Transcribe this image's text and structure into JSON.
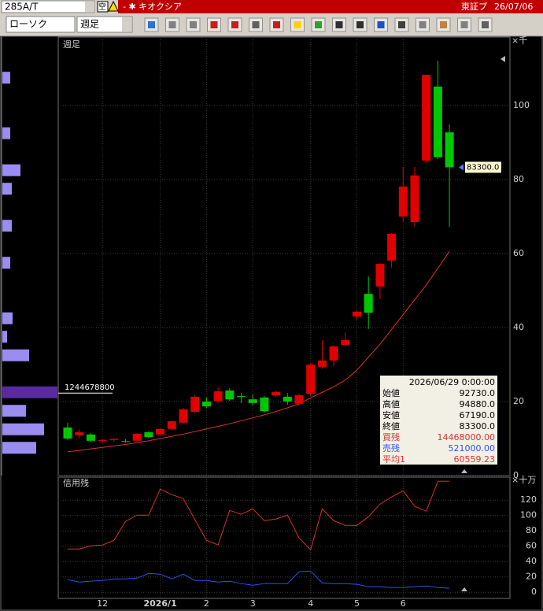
{
  "toolbar": {
    "symbol": "285A/T",
    "flag": "空",
    "name": "- ✱ キオクシア",
    "market": "東証プ",
    "date": "26/07/06",
    "chart_style": "ローソク",
    "period": "週足"
  },
  "chart_data": [
    {
      "type": "candlestick",
      "title": "週足",
      "unit": "×千",
      "categories": [
        null,
        null,
        null,
        "12",
        null,
        null,
        null,
        null,
        "2026/1",
        null,
        null,
        null,
        "2",
        null,
        null,
        null,
        "3",
        null,
        null,
        null,
        null,
        "4",
        null,
        null,
        null,
        "5",
        null,
        null,
        null,
        "6",
        null,
        null,
        null,
        null
      ],
      "open": [
        13.0,
        10.9,
        11.1,
        9.4,
        9.6,
        9.3,
        9.4,
        11.7,
        11.1,
        12.6,
        14.3,
        17.2,
        20.0,
        20.2,
        23.0,
        21.5,
        20.6,
        21.1,
        21.7,
        21.3,
        19.4,
        22.1,
        29.4,
        31.1,
        35.3,
        43.0,
        49.1,
        51.1,
        58.1,
        70.0,
        68.5,
        85.1,
        105.1,
        92.73
      ],
      "high": [
        14.3,
        12.5,
        11.5,
        10.0,
        10.2,
        9.8,
        11.5,
        12.0,
        12.8,
        14.9,
        18.3,
        21.7,
        21.1,
        23.8,
        23.6,
        22.3,
        21.9,
        21.5,
        23.0,
        22.3,
        22.1,
        30.4,
        36.6,
        35.3,
        38.7,
        44.7,
        53.8,
        57.4,
        65.5,
        83.4,
        83.4,
        108.3,
        112.1,
        94.88
      ],
      "low": [
        9.6,
        10.0,
        9.1,
        8.9,
        9.2,
        8.9,
        9.2,
        10.2,
        10.9,
        12.3,
        14.0,
        16.8,
        18.3,
        19.6,
        20.2,
        19.6,
        18.9,
        17.0,
        21.1,
        19.1,
        18.9,
        21.5,
        28.9,
        29.6,
        34.9,
        42.1,
        39.6,
        47.7,
        56.2,
        68.5,
        67.2,
        84.5,
        85.5,
        67.19
      ],
      "close": [
        10.0,
        11.7,
        9.4,
        9.6,
        9.9,
        9.1,
        11.3,
        10.4,
        12.6,
        14.7,
        17.9,
        21.3,
        18.7,
        22.8,
        20.6,
        21.3,
        19.6,
        17.4,
        22.6,
        20.0,
        21.7,
        30.0,
        31.1,
        34.9,
        36.6,
        44.3,
        44.0,
        57.2,
        65.3,
        78.1,
        81.1,
        108.3,
        86.0,
        83.3
      ],
      "up_color": "#e00000",
      "down_color": "#00c800",
      "overlay": {
        "name": "平均1",
        "color": "#e03030",
        "values": [
          6.4,
          6.8,
          7.2,
          7.6,
          8.0,
          8.4,
          8.9,
          9.4,
          10.0,
          10.6,
          11.2,
          11.9,
          12.6,
          13.3,
          14.0,
          14.8,
          15.6,
          16.4,
          17.3,
          18.3,
          19.4,
          21.0,
          22.5,
          24.0,
          25.8,
          28.5,
          32.0,
          35.5,
          39.5,
          43.5,
          47.5,
          51.5,
          56.0,
          60.56
        ],
        "last_label": "60559.23"
      },
      "ylim": [
        0,
        118.5
      ],
      "yticks": [
        0,
        20,
        40,
        60,
        80,
        100
      ],
      "grid": true,
      "volume_profile": {
        "prices": [
          107.5,
          92.5,
          82.5,
          77.5,
          67.5,
          57.5,
          42.5,
          37.5,
          32.5,
          22.5,
          17.5,
          12.5,
          7.5
        ],
        "volumes": [
          178000000,
          178000000,
          409000000,
          213000000,
          213000000,
          178000000,
          231000000,
          107000000,
          605000000,
          1244678800,
          533000000,
          942000000,
          764000000
        ],
        "color": "#9a8cf0",
        "max_color": "#5a2aa0"
      },
      "last_price_label": "83300.0",
      "info": {
        "date": "2026/06/29 0:00:00",
        "ohlc_labels": [
          "始値",
          "高値",
          "安値",
          "終値"
        ],
        "ohlc_values": [
          "92730.0",
          "94880.0",
          "67190.0",
          "83300.0"
        ]
      }
    },
    {
      "type": "line",
      "title": "信用残",
      "unit": "×十万",
      "ylim": [
        -8,
        150
      ],
      "yticks": [
        0,
        20,
        40,
        60,
        80,
        100,
        120
      ],
      "grid": true,
      "series": [
        {
          "name": "買残",
          "color": "#d83030",
          "values": [
            56.4,
            56.4,
            60.5,
            61.5,
            67.7,
            92.3,
            100.5,
            100.5,
            134.4,
            127.2,
            122,
            94.4,
            67.7,
            61.5,
            106.7,
            101.5,
            108.7,
            93.3,
            95.4,
            100.5,
            70.8,
            55.4,
            108.7,
            93.3,
            87.2,
            87.2,
            98.5,
            114.9,
            124.1,
            132.3,
            111.8,
            105.6,
            144.6,
            144.68
          ],
          "last_label": "14468000.00"
        },
        {
          "name": "売残",
          "color": "#3050e8",
          "values": [
            16.4,
            13.3,
            14.4,
            15.4,
            17.4,
            17.4,
            18.5,
            24.6,
            23.6,
            17.4,
            23.6,
            15.4,
            15.4,
            13.3,
            14.4,
            11.3,
            9.2,
            11.3,
            11.3,
            11.3,
            26.7,
            27.7,
            12.3,
            11.3,
            11.3,
            10.3,
            7.2,
            7.2,
            6.2,
            6.2,
            7.2,
            8.2,
            6.2,
            5.21
          ],
          "last_label": "521000.00"
        }
      ]
    }
  ]
}
